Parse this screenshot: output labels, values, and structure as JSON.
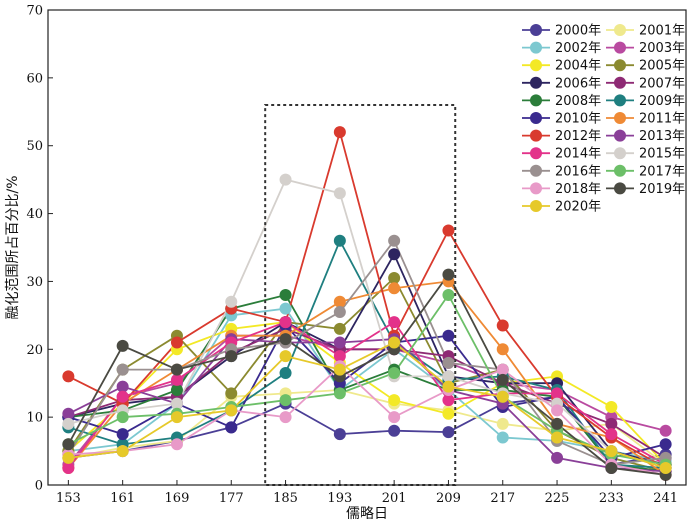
{
  "chart_data": {
    "type": "line",
    "title": "",
    "xlabel": "儒略日",
    "ylabel": "融化范围所占百分比/%",
    "x": [
      153,
      161,
      169,
      177,
      185,
      193,
      201,
      209,
      217,
      225,
      233,
      241
    ],
    "xticks": [
      "153",
      "161",
      "169",
      "177",
      "185",
      "193",
      "201",
      "209",
      "217",
      "225",
      "233",
      "241"
    ],
    "ylim": [
      0,
      70
    ],
    "yticks": [
      "0",
      "10",
      "20",
      "30",
      "40",
      "50",
      "60",
      "70"
    ],
    "grid": false,
    "legend_position": "top-right",
    "highlight_box": {
      "x_range": [
        182,
        210
      ],
      "y_range": [
        0,
        56
      ]
    },
    "series": [
      {
        "name": "2000年",
        "color": "#4b3f96",
        "values": [
          4,
          5,
          6.5,
          8.5,
          12,
          7.5,
          8,
          7.8,
          12,
          13,
          3,
          4.5
        ]
      },
      {
        "name": "2001年",
        "color": "#efe98d",
        "values": [
          4,
          5.5,
          6.5,
          13,
          13.5,
          14,
          12,
          11,
          9,
          8,
          9,
          3
        ]
      },
      {
        "name": "2002年",
        "color": "#7cc8d0",
        "values": [
          5,
          6,
          12,
          25,
          26,
          14,
          20,
          14,
          7,
          6.5,
          5,
          3.5
        ]
      },
      {
        "name": "2003年",
        "color": "#b94aa0",
        "values": [
          3,
          13,
          15,
          22,
          22,
          20,
          20,
          18,
          15,
          14,
          10,
          8
        ]
      },
      {
        "name": "2004年",
        "color": "#f3e926",
        "values": [
          5,
          12,
          20,
          23,
          24,
          18,
          12.5,
          10.5,
          15,
          16,
          11.5,
          3
        ]
      },
      {
        "name": "2005年",
        "color": "#8b8a30",
        "values": [
          5,
          17,
          22,
          13.5,
          24,
          23,
          30.5,
          15,
          17,
          8,
          4,
          2
        ]
      },
      {
        "name": "2006年",
        "color": "#2d2560",
        "values": [
          10,
          12,
          13,
          19,
          24,
          20,
          34,
          16,
          15,
          15,
          5,
          3
        ]
      },
      {
        "name": "2007年",
        "color": "#8e2a74",
        "values": [
          10,
          12.5,
          13,
          19.5,
          23,
          20,
          20,
          19,
          15,
          12,
          9,
          4
        ]
      },
      {
        "name": "2008年",
        "color": "#2b7d3a",
        "values": [
          10,
          11,
          14,
          26,
          28,
          14,
          17,
          14,
          14,
          13,
          3,
          2
        ]
      },
      {
        "name": "2009年",
        "color": "#1f7f80",
        "values": [
          8.5,
          6,
          7,
          11,
          16.5,
          36,
          21,
          15.5,
          16,
          14,
          3,
          2.5
        ]
      },
      {
        "name": "2010年",
        "color": "#3a2a8e",
        "values": [
          10,
          7.5,
          12,
          8.5,
          23.5,
          15,
          21,
          22,
          11.5,
          13,
          4,
          6
        ]
      },
      {
        "name": "2011年",
        "color": "#ef8a35",
        "values": [
          2.5,
          12,
          17,
          22,
          22,
          27,
          29,
          30,
          20,
          9,
          7,
          1.5
        ]
      },
      {
        "name": "2012年",
        "color": "#d93a2e",
        "values": [
          16,
          12,
          21,
          26,
          24,
          52,
          22,
          37.5,
          23.5,
          13,
          7,
          2.5
        ]
      },
      {
        "name": "2013年",
        "color": "#8a3f98",
        "values": [
          10.5,
          14.5,
          12,
          21.5,
          21,
          21,
          21.5,
          14,
          12,
          4,
          2.5,
          2
        ]
      },
      {
        "name": "2014年",
        "color": "#e3328a",
        "values": [
          2.5,
          13,
          15.5,
          21,
          24,
          19,
          24,
          12.5,
          13.5,
          13.5,
          7.5,
          3
        ]
      },
      {
        "name": "2015年",
        "color": "#d4d0cc",
        "values": [
          9,
          11,
          12,
          27,
          45,
          43,
          16,
          16,
          13.5,
          12,
          5,
          2.5
        ]
      },
      {
        "name": "2016年",
        "color": "#9a9090",
        "values": [
          4.5,
          17,
          17,
          20,
          21,
          25.5,
          36,
          18,
          17,
          6.5,
          3,
          4
        ]
      },
      {
        "name": "2017年",
        "color": "#6cbf68",
        "values": [
          6,
          10,
          10.5,
          11.5,
          12.5,
          13.5,
          16.5,
          28,
          13,
          8,
          4.5,
          3
        ]
      },
      {
        "name": "2018年",
        "color": "#e89ac8",
        "values": [
          4.5,
          5,
          6,
          11,
          10,
          17.5,
          10,
          14,
          17,
          11,
          3,
          1.5
        ]
      },
      {
        "name": "2019年",
        "color": "#4a4a42",
        "values": [
          6,
          20.5,
          17,
          19,
          21.5,
          16,
          20,
          31,
          15.5,
          9,
          2.5,
          1.5
        ]
      },
      {
        "name": "2020年",
        "color": "#e6c92a",
        "values": [
          4,
          5,
          10,
          11,
          19,
          17,
          21,
          14.5,
          13,
          7,
          5,
          2.5
        ]
      }
    ]
  }
}
